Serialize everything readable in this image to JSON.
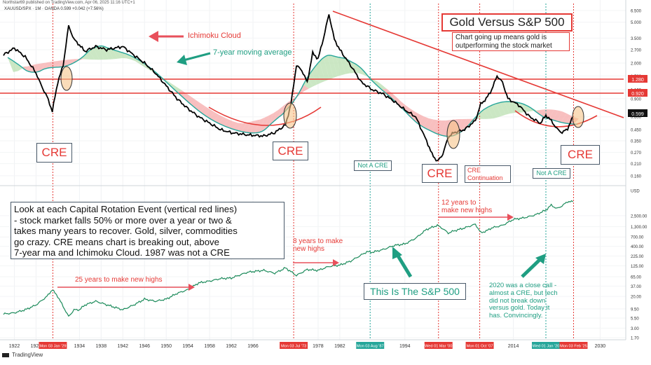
{
  "header": {
    "publisher": "Northstar69 published on TradingView.com, Apr 06, 2025 11:16 UTC+1",
    "symbol_line": "XAUUSD/SPX · 1M · OANDA  0.599  +0.042 (+7.56%)",
    "brand": "TradingView"
  },
  "annotations": {
    "title": "Gold Versus S&P 500",
    "subtitle_line1": "Chart going up means gold is",
    "subtitle_line2": "outperforming the stock market",
    "ichimoku": "Ichimoku Cloud",
    "ma7": "7-year moving average",
    "cre": "CRE",
    "not_cre": "Not A CRE",
    "cre_cont_1": "CRE",
    "cre_cont_2": "Continuation",
    "explain_1": "Look at each Capital Rotation Event (vertical red lines)",
    "explain_2": "- stock market falls 50% or more over a year or two &",
    "explain_3": "takes many years to recover. Gold, silver, commodities",
    "explain_4": "go  crazy. CRE means chart is breaking out, above",
    "explain_5": "7-year ma and Ichimoku Cloud. 1987 was not a CRE",
    "years25": "25 years to make new highs",
    "years8_1": "8 years to make",
    "years8_2": "new highs",
    "years12_1": "12 years to",
    "years12_2": "make new highs",
    "sp500": "This Is The S&P 500",
    "close_1": "2020 was a close call -",
    "close_2": "almost a CRE, but tech",
    "close_3": "did not break down",
    "close_4": "versus gold. Today it",
    "close_5": "has. Convincingly."
  },
  "colors": {
    "ratio_line": "#000000",
    "ma_line": "#26a69a",
    "cloud_red": "#f5a9a9",
    "cloud_green": "#b9dfb0",
    "sp_line": "#1b8a5a",
    "cre_red": "#e53935",
    "not_cre_teal": "#26a69a",
    "arrow_red": "#e8505b",
    "arrow_teal": "#1f9e82",
    "box_border": "#4a5a6a"
  },
  "chart_data": [
    {
      "type": "line",
      "title": "Gold Versus S&P 500",
      "yscale": "log",
      "ylim": [
        0.15,
        6.5
      ],
      "y_ticks": [
        "6.500",
        "5.000",
        "3.500",
        "2.700",
        "2.000",
        "1.500",
        "1.100",
        "0.900",
        "0.600",
        "0.450",
        "0.350",
        "0.270",
        "0.210",
        "0.160"
      ],
      "levels": [
        "1.280",
        "0.920"
      ],
      "last_value": "0.599",
      "series": [
        {
          "x": [
            1920,
            1922,
            1924,
            1926,
            1927,
            1928,
            1929,
            1930,
            1931,
            1932,
            1933,
            1934,
            1935,
            1937,
            1939,
            1942,
            1944,
            1946,
            1948,
            1950,
            1952,
            1954,
            1956,
            1958,
            1960,
            1962,
            1965,
            1968,
            1970,
            1972,
            1973,
            1974,
            1975,
            1976,
            1977,
            1978,
            1979,
            1980,
            1981,
            1982,
            1984,
            1986,
            1988,
            1990,
            1992,
            1994,
            1996,
            1998,
            1999,
            2000,
            2001,
            2002,
            2003,
            2005,
            2007,
            2008,
            2009,
            2010,
            2011,
            2012,
            2013,
            2015,
            2017,
            2019,
            2020,
            2021,
            2022,
            2023,
            2024,
            2025
          ],
          "values": [
            2.4,
            2.8,
            2.3,
            1.6,
            1.2,
            0.95,
            0.68,
            1.3,
            1.9,
            4.6,
            3.4,
            3.0,
            2.6,
            2.9,
            2.7,
            2.9,
            2.4,
            2.0,
            1.6,
            1.2,
            0.9,
            0.72,
            0.6,
            0.52,
            0.45,
            0.42,
            0.4,
            0.39,
            0.42,
            0.5,
            0.8,
            1.9,
            1.7,
            1.3,
            2.5,
            2.2,
            3.5,
            6.0,
            3.4,
            2.7,
            1.9,
            1.3,
            1.1,
            1.0,
            0.85,
            0.7,
            0.6,
            0.35,
            0.26,
            0.22,
            0.26,
            0.38,
            0.42,
            0.45,
            0.55,
            0.8,
            0.9,
            1.1,
            1.5,
            1.3,
            0.9,
            0.78,
            0.6,
            0.52,
            0.62,
            0.55,
            0.46,
            0.42,
            0.46,
            0.6
          ]
        }
      ]
    },
    {
      "type": "line",
      "title": "This Is The S&P 500",
      "yscale": "log",
      "ylim": [
        1.7,
        6500
      ],
      "y_ticks": [
        "USD",
        "2,500.00",
        "1,300.00",
        "700.00",
        "400.00",
        "225.00",
        "125.00",
        "65.00",
        "37.00",
        "20.00",
        "9.50",
        "5.50",
        "3.00",
        "1.70"
      ],
      "series": [
        {
          "x": [
            1920,
            1922,
            1924,
            1926,
            1928,
            1929,
            1930,
            1931,
            1932,
            1933,
            1934,
            1935,
            1937,
            1940,
            1942,
            1944,
            1946,
            1948,
            1950,
            1952,
            1954,
            1956,
            1958,
            1960,
            1962,
            1965,
            1968,
            1970,
            1972,
            1974,
            1976,
            1978,
            1980,
            1982,
            1984,
            1986,
            1987,
            1988,
            1990,
            1992,
            1994,
            1996,
            1998,
            2000,
            2001,
            2002,
            2003,
            2005,
            2007,
            2008,
            2009,
            2010,
            2012,
            2014,
            2016,
            2018,
            2019,
            2020,
            2021,
            2022,
            2023,
            2024,
            2025
          ],
          "values": [
            7,
            7.5,
            9,
            12,
            20,
            30,
            20,
            11,
            6,
            9,
            9,
            12,
            15,
            11,
            9,
            12,
            17,
            15,
            17,
            24,
            30,
            45,
            50,
            58,
            60,
            85,
            95,
            80,
            110,
            70,
            100,
            95,
            120,
            130,
            165,
            240,
            290,
            280,
            330,
            420,
            460,
            650,
            1100,
            1400,
            1150,
            880,
            1000,
            1200,
            1500,
            900,
            1000,
            1200,
            1400,
            2000,
            2200,
            2600,
            3000,
            3500,
            4700,
            3800,
            4500,
            5800,
            5700
          ]
        }
      ]
    }
  ],
  "x_axis": {
    "ticks": [
      "1922",
      "1926",
      "1934",
      "1938",
      "1942",
      "1946",
      "1950",
      "1954",
      "1958",
      "1962",
      "1966",
      "1978",
      "1982",
      "1994",
      "2014",
      "2030"
    ],
    "events": [
      {
        "year": 1929.1,
        "label": "Mon 03 Jan '29",
        "kind": "cre"
      },
      {
        "year": 1973.5,
        "label": "Mon 03 Jul '73",
        "kind": "cre"
      },
      {
        "year": 1987.6,
        "label": "Mon 03 Aug '87",
        "kind": "not"
      },
      {
        "year": 2000.2,
        "label": "Wed 01 Mar '00",
        "kind": "cre"
      },
      {
        "year": 2007.8,
        "label": "Mon 01 Oct '07",
        "kind": "cre"
      },
      {
        "year": 2020.0,
        "label": "Wed 01 Jan '20",
        "kind": "not"
      },
      {
        "year": 2025.1,
        "label": "Mon 03 Feb '25",
        "kind": "cre"
      }
    ]
  }
}
